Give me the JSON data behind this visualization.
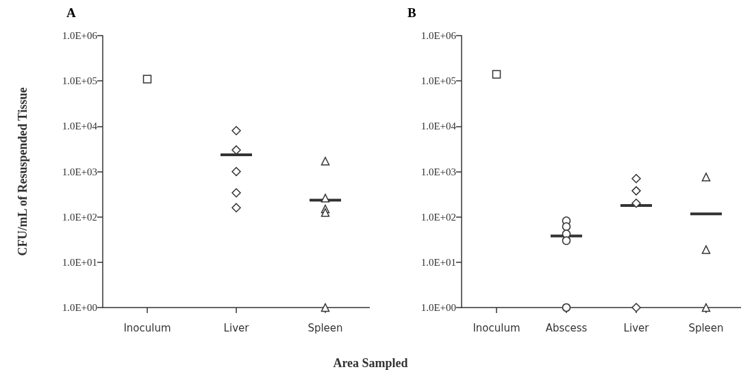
{
  "chart_data": [
    {
      "type": "scatter",
      "title": "A",
      "ylabel": "CFU/mL of Resuspended Tissue",
      "xlabel": "Area Sampled",
      "categories": [
        "Inoculum",
        "Liver",
        "Spleen"
      ],
      "log": "y",
      "ylim": [
        1,
        1000000
      ],
      "yticks": [
        {
          "value": 1,
          "label": "1.0E+00"
        },
        {
          "value": 10,
          "label": "1.0E+01"
        },
        {
          "value": 100,
          "label": "1.0E+02"
        },
        {
          "value": 1000,
          "label": "1.0E+03"
        },
        {
          "value": 10000,
          "label": "1.0E+04"
        },
        {
          "value": 100000,
          "label": "1.0E+05"
        },
        {
          "value": 1000000,
          "label": "1.0E+06"
        }
      ],
      "grid": false,
      "series": [
        {
          "x": [
            "Inoculum"
          ],
          "values": [
            110000
          ],
          "marker": "square",
          "color": "#333333"
        },
        {
          "x": [
            "Liver",
            "Liver",
            "Liver",
            "Liver",
            "Liver"
          ],
          "values": [
            8000,
            3000,
            1000,
            340,
            160
          ],
          "marker": "diamond",
          "color": "#333333"
        },
        {
          "x": [
            "Spleen",
            "Spleen",
            "Spleen",
            "Spleen",
            "Spleen"
          ],
          "values": [
            1700,
            260,
            150,
            125,
            1
          ],
          "marker": "triangle",
          "color": "#333333"
        },
        {
          "type": "box",
          "x": [
            "Liver",
            "Spleen"
          ],
          "boxes": [
            {
              "low": 2350,
              "q1": 2350,
              "median": 2350,
              "q3": 2350,
              "high": 2350
            },
            {
              "low": 233,
              "q1": 233,
              "median": 233,
              "q3": 233,
              "high": 233
            }
          ],
          "color": "#333333"
        }
      ]
    },
    {
      "type": "scatter",
      "title": "B",
      "categories": [
        "Inoculum",
        "Abscess",
        "Liver",
        "Spleen"
      ],
      "log": "y",
      "ylim": [
        1,
        1000000
      ],
      "yticks": [
        {
          "value": 1,
          "label": "1.0E+00"
        },
        {
          "value": 10,
          "label": "1.0E+01"
        },
        {
          "value": 100,
          "label": "1.0E+02"
        },
        {
          "value": 1000,
          "label": "1.0E+03"
        },
        {
          "value": 10000,
          "label": "1.0E+04"
        },
        {
          "value": 100000,
          "label": "1.0E+05"
        },
        {
          "value": 1000000,
          "label": "1.0E+06"
        }
      ],
      "grid": false,
      "series": [
        {
          "x": [
            "Inoculum"
          ],
          "values": [
            140000
          ],
          "marker": "square",
          "color": "#333333"
        },
        {
          "x": [
            "Abscess",
            "Abscess",
            "Abscess",
            "Abscess",
            "Abscess"
          ],
          "values": [
            82,
            61,
            42,
            30,
            1
          ],
          "marker": "circle",
          "color": "#333333"
        },
        {
          "x": [
            "Liver",
            "Liver",
            "Liver",
            "Liver"
          ],
          "values": [
            700,
            376,
            200,
            1
          ],
          "marker": "diamond",
          "color": "#333333"
        },
        {
          "x": [
            "Spleen",
            "Spleen",
            "Spleen"
          ],
          "values": [
            760,
            19,
            1
          ],
          "marker": "triangle",
          "color": "#333333"
        },
        {
          "type": "box",
          "x": [
            "Abscess",
            "Liver",
            "Spleen"
          ],
          "boxes": [
            {
              "low": 38,
              "q1": 38,
              "median": 38,
              "q3": 38,
              "high": 38
            },
            {
              "low": 178,
              "q1": 178,
              "median": 178,
              "q3": 178,
              "high": 178
            },
            {
              "low": 117,
              "q1": 117,
              "median": 117,
              "q3": 117,
              "high": 117
            }
          ],
          "color": "#333333"
        }
      ]
    }
  ]
}
